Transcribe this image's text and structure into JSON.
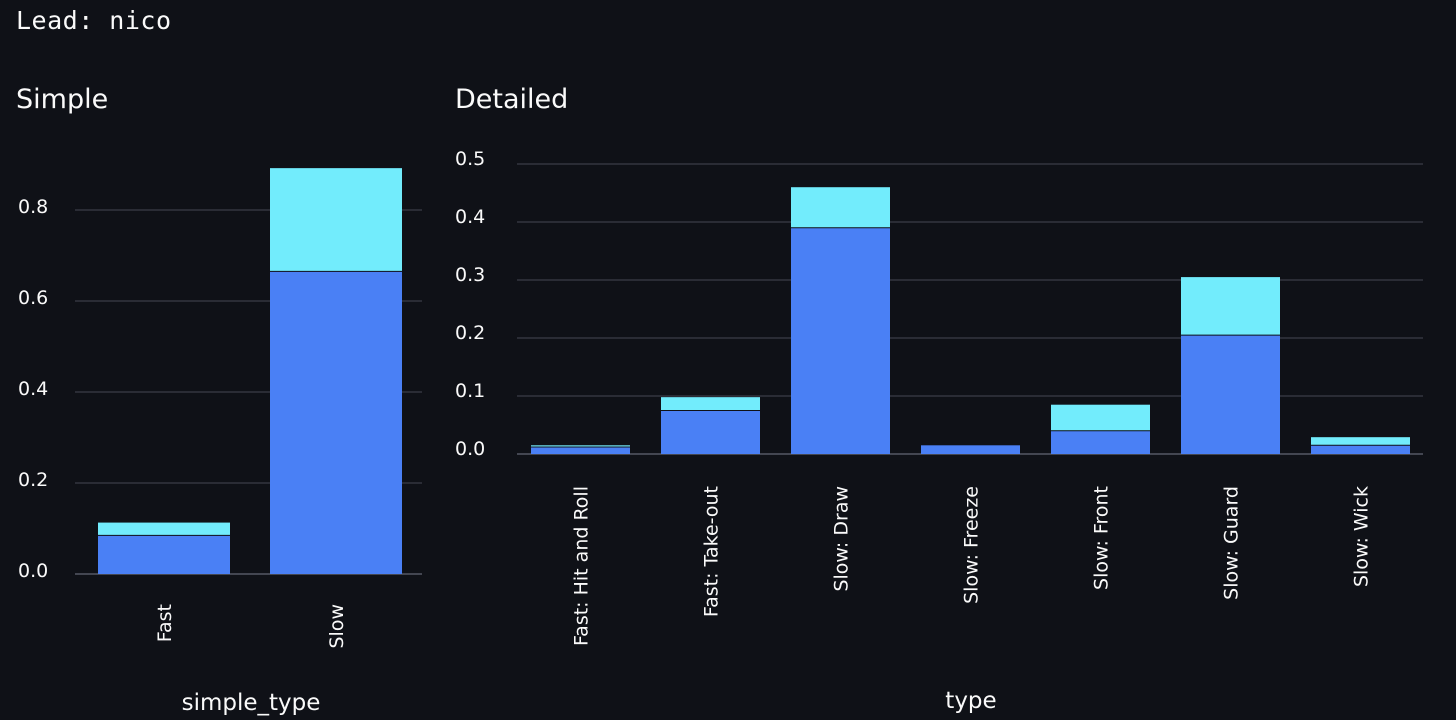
{
  "header": {
    "lead_text": "Lead: nico"
  },
  "colors": {
    "series_lower": "#4a80f5",
    "series_upper": "#72ecfc",
    "grid": "#3a3d47",
    "background": "#0f1117"
  },
  "chart_data": [
    {
      "id": "simple",
      "type": "bar",
      "stacked": true,
      "title": "Simple",
      "xlabel": "simple_type",
      "ylabel": "",
      "ylim": [
        0,
        0.9
      ],
      "yticks": [
        0.0,
        0.2,
        0.4,
        0.6,
        0.8
      ],
      "ytick_labels": [
        "0.0",
        "0.2",
        "0.4",
        "0.6",
        "0.8"
      ],
      "grid": true,
      "categories": [
        "Fast",
        "Slow"
      ],
      "series": [
        {
          "values": [
            0.085,
            0.665
          ],
          "color": "#4a80f5"
        },
        {
          "values": [
            0.028,
            0.227
          ],
          "color": "#72ecfc"
        }
      ]
    },
    {
      "id": "detailed",
      "type": "bar",
      "stacked": true,
      "title": "Detailed",
      "xlabel": "type",
      "ylabel": "",
      "ylim": [
        0,
        0.5
      ],
      "yticks": [
        0.0,
        0.1,
        0.2,
        0.3,
        0.4,
        0.5
      ],
      "ytick_labels": [
        "0.0",
        "0.1",
        "0.2",
        "0.3",
        "0.4",
        "0.5"
      ],
      "grid": true,
      "categories": [
        "Fast: Hit and Roll",
        "Fast: Take-out",
        "Slow: Draw",
        "Slow: Freeze",
        "Slow: Front",
        "Slow: Guard",
        "Slow: Wick"
      ],
      "series": [
        {
          "values": [
            0.012,
            0.075,
            0.39,
            0.015,
            0.04,
            0.205,
            0.015
          ],
          "color": "#4a80f5"
        },
        {
          "values": [
            0.003,
            0.023,
            0.07,
            0.0,
            0.045,
            0.1,
            0.014
          ],
          "color": "#72ecfc"
        }
      ]
    }
  ]
}
